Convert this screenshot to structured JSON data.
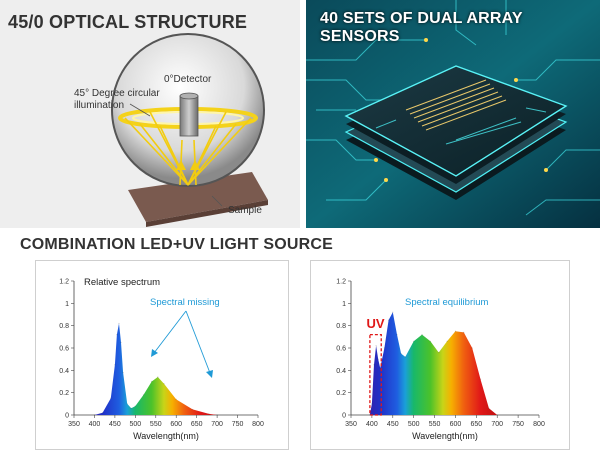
{
  "panels": {
    "optical": {
      "title": "45/0 OPTICAL STRUCTURE",
      "detector_label": "0°Detector",
      "illumination_label_line1": "45° Degree circular",
      "illumination_label_line2": "illumination",
      "sample_label": "Sample"
    },
    "sensors": {
      "title": "40 SETS OF DUAL ARRAY SENSORS"
    },
    "combination": {
      "title": "COMBINATION LED+UV LIGHT SOURCE"
    }
  },
  "chart_data": [
    {
      "type": "area",
      "title": "Relative spectrum",
      "annotation": "Spectral missing",
      "xlabel": "Wavelength(nm)",
      "ylabel": "",
      "x_ticks": [
        350,
        400,
        450,
        500,
        550,
        600,
        650,
        700,
        750,
        800
      ],
      "y_ticks": [
        0,
        0.2,
        0.4,
        0.6,
        0.8,
        1,
        1.2
      ],
      "xlim": [
        350,
        800
      ],
      "ylim": [
        0,
        1.2
      ],
      "x": [
        400,
        420,
        440,
        450,
        455,
        460,
        465,
        470,
        480,
        490,
        500,
        520,
        540,
        555,
        570,
        600,
        640,
        680,
        700
      ],
      "values": [
        0,
        0.02,
        0.15,
        0.45,
        0.72,
        0.82,
        0.65,
        0.38,
        0.1,
        0.06,
        0.08,
        0.18,
        0.3,
        0.34,
        0.28,
        0.14,
        0.05,
        0.01,
        0
      ]
    },
    {
      "type": "area",
      "title": "",
      "annotation": "Spectral equilibrium",
      "highlight_label": "UV",
      "highlight_range": [
        400,
        420
      ],
      "xlabel": "Wavelength(nm)",
      "ylabel": "",
      "x_ticks": [
        350,
        400,
        450,
        500,
        550,
        600,
        650,
        700,
        750,
        800
      ],
      "y_ticks": [
        0,
        0.2,
        0.4,
        0.6,
        0.8,
        1,
        1.2
      ],
      "xlim": [
        350,
        800
      ],
      "ylim": [
        0,
        1.2
      ],
      "x": [
        395,
        400,
        405,
        410,
        415,
        420,
        430,
        440,
        450,
        460,
        470,
        480,
        500,
        520,
        540,
        560,
        580,
        600,
        620,
        640,
        660,
        680,
        700
      ],
      "values": [
        0,
        0.1,
        0.45,
        0.62,
        0.5,
        0.42,
        0.6,
        0.85,
        0.92,
        0.72,
        0.55,
        0.52,
        0.66,
        0.72,
        0.66,
        0.56,
        0.66,
        0.75,
        0.74,
        0.6,
        0.32,
        0.06,
        0
      ]
    }
  ]
}
